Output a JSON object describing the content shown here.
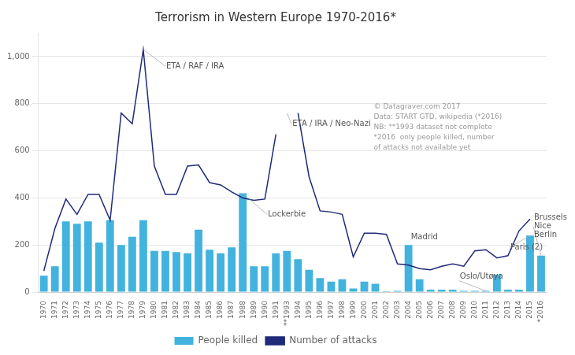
{
  "chart_data": {
    "type": "bar",
    "title": "Terrorism in Western Europe 1970-2016*",
    "categories": [
      "1970",
      "1971",
      "1972",
      "1973",
      "1974",
      "1975",
      "1976",
      "1977",
      "1978",
      "1979",
      "1980",
      "1981",
      "1982",
      "1983",
      "1984",
      "1985",
      "1986",
      "1987",
      "1988",
      "1989",
      "1990",
      "1991",
      "**1993",
      "1994",
      "1995",
      "1996",
      "1997",
      "1998",
      "1999",
      "2000",
      "2001",
      "2002",
      "2003",
      "2004",
      "2005",
      "2006",
      "2007",
      "2008",
      "2009",
      "2010",
      "2011",
      "2012",
      "2013",
      "2014",
      "2015",
      "*2016"
    ],
    "series": [
      {
        "name": "People killed",
        "type": "bar",
        "color": "#41B3DE",
        "values": [
          70,
          110,
          300,
          290,
          300,
          210,
          305,
          200,
          235,
          305,
          175,
          175,
          170,
          165,
          265,
          180,
          165,
          190,
          420,
          110,
          110,
          165,
          175,
          140,
          95,
          60,
          45,
          55,
          15,
          45,
          35,
          4,
          5,
          200,
          55,
          10,
          10,
          10,
          5,
          5,
          5,
          75,
          10,
          10,
          240,
          155
        ]
      },
      {
        "name": "Number of attacks",
        "type": "line",
        "color": "#1F2A7A",
        "values": [
          90,
          270,
          395,
          330,
          415,
          415,
          305,
          760,
          715,
          1030,
          535,
          415,
          415,
          535,
          540,
          465,
          455,
          425,
          400,
          390,
          395,
          670,
          null,
          760,
          490,
          345,
          340,
          330,
          150,
          250,
          250,
          245,
          120,
          115,
          100,
          95,
          110,
          120,
          110,
          175,
          180,
          145,
          155,
          260,
          310,
          null
        ]
      }
    ],
    "ylim": [
      0,
      1100
    ],
    "yticks": [
      0,
      200,
      400,
      600,
      800,
      1000
    ],
    "grid": true,
    "legend": "bottom",
    "annotations": [
      {
        "text": "ETA / RAF / IRA",
        "x": "1979",
        "y": 1030
      },
      {
        "text": "ETA / IRA / Neo-Nazi",
        "x": "**1993",
        "y": 760
      },
      {
        "text": "Lockerbie",
        "x": "1988",
        "y": 420
      },
      {
        "text": "Madrid",
        "x": "2004",
        "y": 200
      },
      {
        "text": "Oslo/Utøya",
        "x": "2011",
        "y": 5
      },
      {
        "text": "Paris (2)",
        "x": "2015",
        "y": 240
      },
      {
        "text": "Brussels\nNice\nBerlin",
        "x": "*2016",
        "y": 155
      },
      {
        "text": "© Datagraver.com 2017\nData: START GTD, wikipedia (*2016)\nNB: **1993 dataset not complete\n*2016  only people killed, number\nof attacks not available yet"
      }
    ]
  }
}
